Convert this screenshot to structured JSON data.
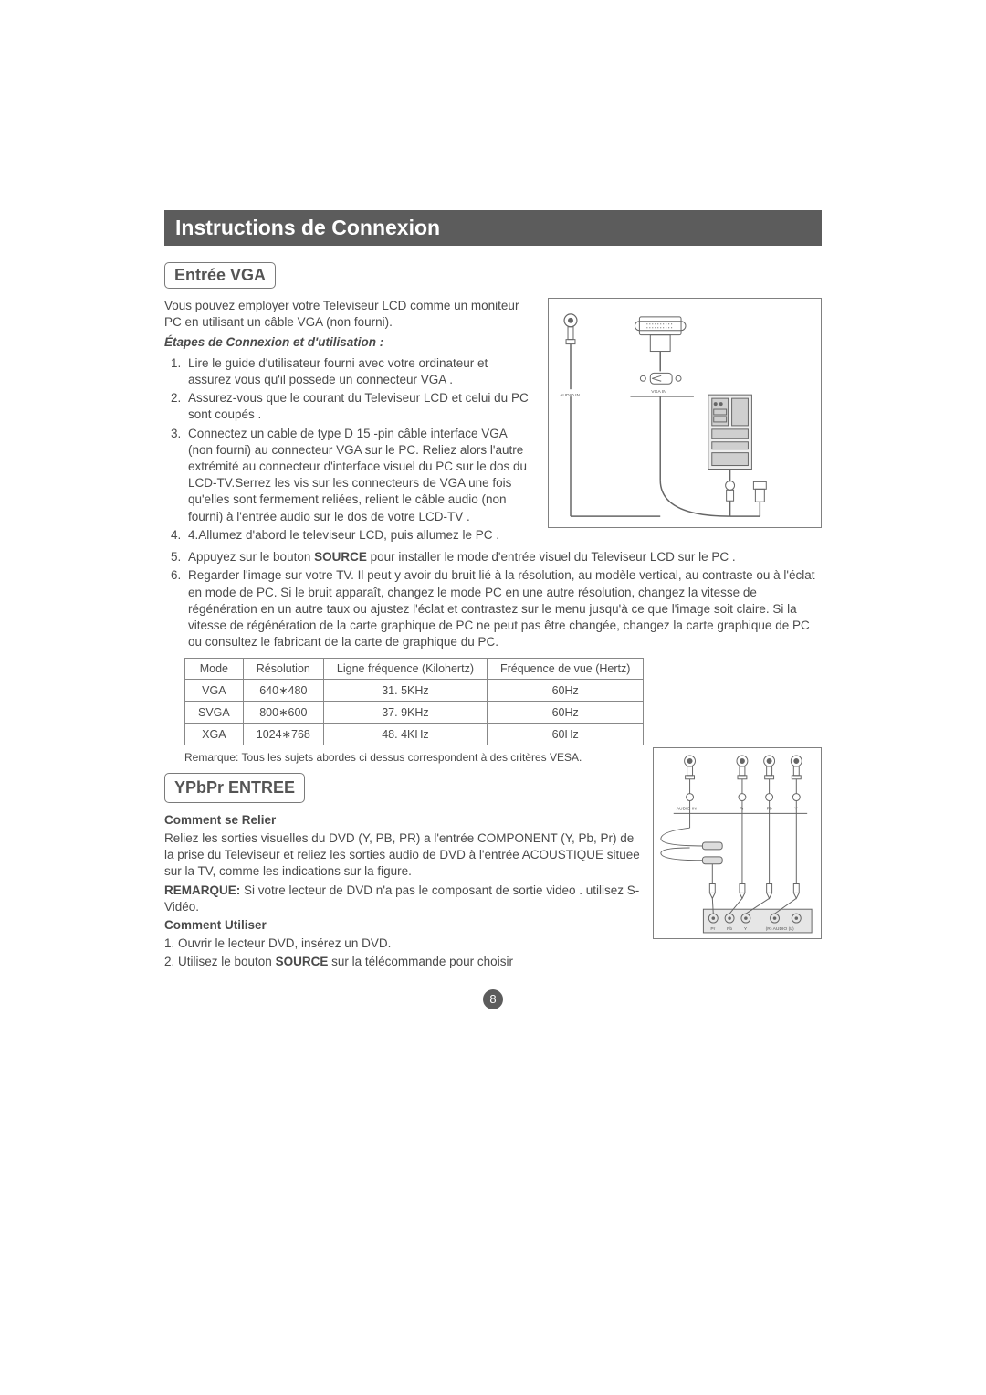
{
  "title": "Instructions de Connexion",
  "vga": {
    "label": "Entrée VGA",
    "intro": "Vous pouvez employer votre Televiseur LCD comme un moniteur PC en utilisant un câble VGA (non fourni).",
    "subhead": "Étapes de Connexion et d'utilisation :",
    "steps": [
      "Lire le guide d'utilisateur fourni avec votre ordinateur et assurez vous qu'il possede  un connecteur VGA .",
      "Assurez-vous que le courant du Televiseur LCD et celui du PC sont coupés .",
      "Connectez un cable de type D 15 -pin câble interface VGA (non fourni) au connecteur  VGA sur le PC. Reliez alors l'autre extrémité au connecteur d'interface visuel du PC sur le dos du LCD-TV.Serrez les vis sur les connecteurs de VGA une fois qu'elles sont fermement reliées, relient le câble audio (non fourni) à l'entrée audio sur le dos de votre LCD-TV .",
      "4.Allumez d'abord le televiseur LCD,  puis allumez le PC .",
      "Appuyez sur le bouton <b>SOURCE</b> pour installer le mode d'entrée visuel du Televiseur LCD sur le PC .",
      "Regarder l'image sur votre TV. Il peut y avoir du bruit lié à la résolution, au modèle vertical, au contraste ou à l'éclat en mode de PC. Si le bruit apparaît, changez le mode  PC en une autre résolution, changez la vitesse de régénération en un autre taux ou ajustez l'éclat et contrastez sur le menu jusqu'à ce que l'image soit claire. Si la vitesse de régénération de la carte graphique de PC ne peut pas être changée, changez la carte graphique de PC ou consultez le fabricant de la carte de graphique du PC."
    ],
    "diagram": {
      "audio_in": "AUDIO IN",
      "vga_in": "VGA IN"
    },
    "table": {
      "columns": [
        "Mode",
        "Résolution",
        "Ligne fréquence (Kilohertz)",
        "Fréquence de vue (Hertz)"
      ],
      "rows": [
        [
          "VGA",
          "640∗480",
          "31. 5KHz",
          "60Hz"
        ],
        [
          "SVGA",
          "800∗600",
          "37. 9KHz",
          "60Hz"
        ],
        [
          "XGA",
          "1024∗768",
          "48. 4KHz",
          "60Hz"
        ]
      ]
    },
    "remark": "Remarque: Tous les sujets abordes ci dessus correspondent à des critères VESA."
  },
  "ypbpr": {
    "label": "YPbPr ENTREE",
    "sub1": "Comment se Relier",
    "p1": "Reliez les sorties visuelles du DVD (Y, PB, PR) a l'entrée COMPONENT (Y, Pb, Pr)  de la prise du Televiseur et reliez les sorties audio de DVD à l'entrée ACOUSTIQUE situee  sur la TV, comme les indications sur la figure.",
    "p2": "<b>REMARQUE:</b> Si votre lecteur de DVD n'a pas le composant de sortie video . utilisez  S-Vidéo.",
    "sub2": "Comment Utiliser",
    "u1": "1. Ouvrir le lecteur DVD, insérez un DVD.",
    "u2": "2. Utilisez le bouton <b>SOURCE</b> sur la télécommande pour choisir",
    "diagram": {
      "audio_in": "AUDIO IN",
      "pr": "Pr",
      "pb": "Pb",
      "y": "Y",
      "bottom_pr": "Pr",
      "bottom_pb": "Pb",
      "bottom_y": "Y",
      "bottom_r": "(R) AUDIO (L)"
    }
  },
  "page_number": "8",
  "colors": {
    "bar": "#5c5c5c",
    "text": "#4a4a4a",
    "border": "#808080"
  }
}
